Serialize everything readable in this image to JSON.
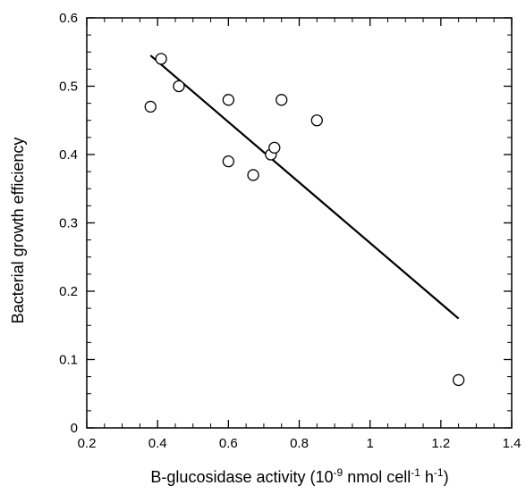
{
  "chart_data": {
    "type": "scatter",
    "title": "",
    "xlabel": "B-glucosidase activity (10",
    "xlabel_parts": {
      "prefix": "B-glucosidase activity (10",
      "exp1": "-9",
      "mid1": " nmol cell",
      "exp2": "-1",
      "mid2": " h",
      "exp3": "-1",
      "suffix": ")"
    },
    "ylabel": "Bacterial growth efficiency",
    "xlim": [
      0.2,
      1.4
    ],
    "ylim": [
      0,
      0.6
    ],
    "x_ticks": [
      0.2,
      0.4,
      0.6,
      0.8,
      1.0,
      1.2,
      1.4
    ],
    "x_tick_labels": [
      "0.2",
      "0.4",
      "0.6",
      "0.8",
      "1",
      "1.2",
      "1.4"
    ],
    "y_ticks": [
      0,
      0.1,
      0.2,
      0.3,
      0.4,
      0.5,
      0.6
    ],
    "y_tick_labels": [
      "0",
      "0.1",
      "0.2",
      "0.3",
      "0.4",
      "0.5",
      "0.6"
    ],
    "x_minor_step": 0.05,
    "y_minor_step": 0.025,
    "grid": false,
    "legend": "none",
    "series": [
      {
        "marker": "open-circle",
        "points": [
          {
            "x": 0.38,
            "y": 0.47
          },
          {
            "x": 0.41,
            "y": 0.54
          },
          {
            "x": 0.46,
            "y": 0.5
          },
          {
            "x": 0.6,
            "y": 0.48
          },
          {
            "x": 0.6,
            "y": 0.39
          },
          {
            "x": 0.67,
            "y": 0.37
          },
          {
            "x": 0.72,
            "y": 0.4
          },
          {
            "x": 0.73,
            "y": 0.41
          },
          {
            "x": 0.75,
            "y": 0.48
          },
          {
            "x": 0.85,
            "y": 0.45
          },
          {
            "x": 1.25,
            "y": 0.07
          }
        ]
      }
    ],
    "regression_line": {
      "x": [
        0.38,
        1.25
      ],
      "y": [
        0.545,
        0.16
      ]
    },
    "colors": {
      "axis": "#000000",
      "marker_stroke": "#000000",
      "marker_fill": "#ffffff",
      "line": "#000000",
      "background": "#ffffff"
    }
  }
}
